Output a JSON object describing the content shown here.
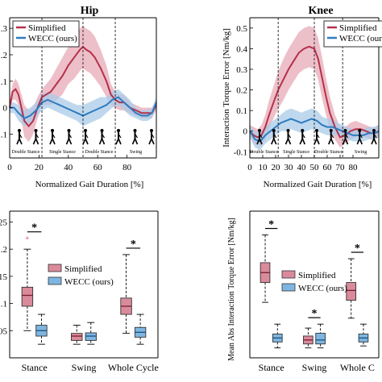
{
  "colors": {
    "simplified": "#b5304a",
    "simplified_fill": "#e5a4b2",
    "wecc": "#2e7bc0",
    "wecc_fill": "#a9cbe8",
    "box_pink": "#d98b9c",
    "box_blue": "#7fb6e1"
  },
  "chart_data": [
    {
      "id": "hip_line",
      "type": "line",
      "title": "Hip",
      "xlabel": "Normalized Gait Duration [%]",
      "ylabel": "",
      "xlim": [
        0,
        100
      ],
      "ylim": [
        -0.19,
        0.34
      ],
      "xticks": [
        0,
        20,
        40,
        60,
        80
      ],
      "yticks": [
        {
          "v": 0.3,
          "label": ".3"
        },
        {
          "v": 0.2,
          "label": ".2"
        },
        {
          "v": 0.1,
          "label": ".1"
        },
        {
          "v": 0,
          "label": "0"
        },
        {
          "v": -0.1,
          "label": ".1"
        }
      ],
      "vlines": [
        22,
        50,
        72
      ],
      "phases": [
        "Double Stance",
        "Single Stance",
        "Double Stance",
        "Swing"
      ],
      "legend": {
        "placement": "top-left",
        "entries": [
          "Simplified",
          "WECC (ours)"
        ]
      },
      "series": [
        {
          "name": "Simplified",
          "x": [
            0,
            2,
            4,
            6,
            8,
            10,
            13,
            16,
            19,
            22,
            25,
            28,
            32,
            36,
            40,
            44,
            48,
            50,
            52,
            55,
            58,
            62,
            66,
            69,
            72,
            75,
            78,
            82,
            86,
            90,
            94,
            97,
            100
          ],
          "y": [
            0.0,
            0.06,
            0.07,
            0.05,
            0.0,
            -0.05,
            -0.07,
            -0.05,
            0.0,
            0.04,
            0.05,
            0.06,
            0.09,
            0.12,
            0.16,
            0.19,
            0.22,
            0.23,
            0.22,
            0.21,
            0.19,
            0.15,
            0.1,
            0.05,
            0.03,
            0.02,
            0.02,
            0.0,
            -0.01,
            -0.02,
            -0.02,
            -0.02,
            0.01
          ],
          "spread": [
            0.02,
            0.03,
            0.04,
            0.04,
            0.05,
            0.06,
            0.06,
            0.05,
            0.04,
            0.03,
            0.04,
            0.05,
            0.06,
            0.07,
            0.07,
            0.08,
            0.08,
            0.08,
            0.08,
            0.08,
            0.08,
            0.07,
            0.06,
            0.04,
            0.03,
            0.03,
            0.03,
            0.02,
            0.02,
            0.02,
            0.02,
            0.02,
            0.02
          ]
        },
        {
          "name": "WECC (ours)",
          "x": [
            0,
            3,
            6,
            10,
            14,
            18,
            22,
            26,
            30,
            34,
            38,
            42,
            46,
            50,
            54,
            58,
            62,
            66,
            70,
            74,
            78,
            82,
            86,
            90,
            94,
            97,
            100
          ],
          "y": [
            0.0,
            0.0,
            -0.02,
            -0.04,
            -0.03,
            -0.01,
            0.02,
            0.03,
            0.02,
            0.01,
            0.0,
            -0.01,
            -0.02,
            -0.03,
            -0.02,
            -0.01,
            0.0,
            0.01,
            0.03,
            0.04,
            0.02,
            0.0,
            -0.02,
            -0.03,
            -0.03,
            -0.02,
            0.02
          ],
          "spread": [
            0.02,
            0.02,
            0.03,
            0.03,
            0.03,
            0.03,
            0.03,
            0.03,
            0.03,
            0.03,
            0.03,
            0.03,
            0.03,
            0.04,
            0.04,
            0.04,
            0.04,
            0.03,
            0.03,
            0.03,
            0.03,
            0.03,
            0.02,
            0.02,
            0.02,
            0.02,
            0.02
          ]
        }
      ]
    },
    {
      "id": "knee_line",
      "type": "line",
      "title": "Knee",
      "xlabel": "Normalized Gait Duration [%]",
      "ylabel": "Interaction Torque Error [Nm/kg]",
      "xlim": [
        0,
        100
      ],
      "ylim": [
        -0.13,
        0.55
      ],
      "xticks": [
        0,
        10,
        20,
        30,
        40,
        50,
        60,
        70,
        80
      ],
      "yticks": [
        {
          "v": 0.5,
          "label": "0.5"
        },
        {
          "v": 0.4,
          "label": "0.4"
        },
        {
          "v": 0.3,
          "label": "0.3"
        },
        {
          "v": 0.2,
          "label": "0.2"
        },
        {
          "v": 0.1,
          "label": "0.1"
        },
        {
          "v": 0,
          "label": "0"
        },
        {
          "v": -0.1,
          "label": "-0.1"
        }
      ],
      "vlines": [
        22,
        50,
        72
      ],
      "phases": [
        "Double Stance",
        "Single Stance",
        "Double Stance",
        "Swing"
      ],
      "legend": {
        "placement": "top-right",
        "entries": [
          "Simplified",
          "WECC (ours)"
        ]
      },
      "series": [
        {
          "name": "Simplified",
          "x": [
            0,
            3,
            6,
            9,
            12,
            15,
            19,
            22,
            26,
            30,
            34,
            38,
            42,
            46,
            50,
            53,
            56,
            59,
            62,
            66,
            70,
            74,
            78,
            82,
            86,
            90,
            94,
            97,
            100
          ],
          "y": [
            0.0,
            -0.02,
            -0.03,
            -0.02,
            0.02,
            0.08,
            0.15,
            0.2,
            0.25,
            0.3,
            0.34,
            0.38,
            0.4,
            0.41,
            0.4,
            0.35,
            0.26,
            0.17,
            0.09,
            0.02,
            -0.03,
            -0.02,
            0.0,
            0.01,
            0.01,
            0.0,
            -0.01,
            -0.01,
            0.0
          ],
          "spread": [
            0.03,
            0.04,
            0.04,
            0.05,
            0.06,
            0.07,
            0.08,
            0.09,
            0.1,
            0.1,
            0.1,
            0.1,
            0.1,
            0.1,
            0.1,
            0.1,
            0.1,
            0.09,
            0.08,
            0.06,
            0.05,
            0.04,
            0.04,
            0.04,
            0.03,
            0.03,
            0.03,
            0.03,
            0.03
          ]
        },
        {
          "name": "WECC (ours)",
          "x": [
            0,
            4,
            8,
            12,
            16,
            20,
            24,
            28,
            32,
            36,
            40,
            44,
            48,
            52,
            56,
            60,
            64,
            68,
            72,
            76,
            80,
            84,
            88,
            92,
            96,
            100
          ],
          "y": [
            0.0,
            -0.04,
            -0.05,
            -0.02,
            0.0,
            0.02,
            0.04,
            0.05,
            0.06,
            0.05,
            0.04,
            0.05,
            0.06,
            0.05,
            0.03,
            0.02,
            0.02,
            0.01,
            0.0,
            -0.01,
            -0.02,
            -0.02,
            -0.02,
            -0.01,
            -0.01,
            0.0
          ],
          "spread": [
            0.03,
            0.04,
            0.04,
            0.04,
            0.04,
            0.04,
            0.04,
            0.05,
            0.05,
            0.05,
            0.05,
            0.05,
            0.05,
            0.05,
            0.04,
            0.04,
            0.04,
            0.03,
            0.03,
            0.03,
            0.03,
            0.03,
            0.03,
            0.03,
            0.03,
            0.03
          ]
        }
      ]
    },
    {
      "id": "hip_box",
      "type": "box",
      "title": "",
      "xlabel": "",
      "ylabel": "",
      "ylim": [
        0,
        0.27
      ],
      "yticks": [
        {
          "v": 0.25,
          "label": ".25"
        },
        {
          "v": 0.2,
          "label": ".2"
        },
        {
          "v": 0.15,
          "label": ".15"
        },
        {
          "v": 0.1,
          "label": ".1"
        },
        {
          "v": 0.05,
          "label": ".05"
        }
      ],
      "categories": [
        "Stance",
        "Swing",
        "Whole Cycle"
      ],
      "legend": {
        "placement": "center",
        "entries": [
          "Simplified",
          "WECC (ours)"
        ]
      },
      "significance": [
        0,
        2
      ],
      "series": [
        {
          "name": "Simplified",
          "boxes": [
            {
              "min": 0.05,
              "q1": 0.095,
              "median": 0.115,
              "q3": 0.13,
              "max": 0.2,
              "outliers": [
                0.22
              ]
            },
            {
              "min": 0.025,
              "q1": 0.032,
              "median": 0.04,
              "q3": 0.045,
              "max": 0.06,
              "outliers": []
            },
            {
              "min": 0.045,
              "q1": 0.08,
              "median": 0.095,
              "q3": 0.11,
              "max": 0.19,
              "outliers": []
            }
          ]
        },
        {
          "name": "WECC (ours)",
          "boxes": [
            {
              "min": 0.025,
              "q1": 0.04,
              "median": 0.05,
              "q3": 0.06,
              "max": 0.08,
              "outliers": []
            },
            {
              "min": 0.025,
              "q1": 0.032,
              "median": 0.04,
              "q3": 0.046,
              "max": 0.065,
              "outliers": []
            },
            {
              "min": 0.025,
              "q1": 0.038,
              "median": 0.047,
              "q3": 0.056,
              "max": 0.08,
              "outliers": []
            }
          ]
        }
      ]
    },
    {
      "id": "knee_box",
      "type": "box",
      "title": "",
      "xlabel": "",
      "ylabel": "Mean Abs Interaction Torque Error [Nm/kg]",
      "ylim": [
        0,
        0.37
      ],
      "yticks": [],
      "categories": [
        "Stance",
        "Swing",
        "Whole C"
      ],
      "legend": {
        "placement": "center",
        "entries": [
          "Simplified",
          "WECC (ours)"
        ]
      },
      "significance": [
        0,
        1,
        2
      ],
      "series": [
        {
          "name": "Simplified",
          "boxes": [
            {
              "min": 0.14,
              "q1": 0.19,
              "median": 0.215,
              "q3": 0.24,
              "max": 0.31,
              "outliers": []
            },
            {
              "min": 0.025,
              "q1": 0.035,
              "median": 0.045,
              "q3": 0.055,
              "max": 0.075,
              "outliers": []
            },
            {
              "min": 0.1,
              "q1": 0.145,
              "median": 0.17,
              "q3": 0.19,
              "max": 0.25,
              "outliers": []
            }
          ]
        },
        {
          "name": "WECC (ours)",
          "boxes": [
            {
              "min": 0.025,
              "q1": 0.04,
              "median": 0.05,
              "q3": 0.06,
              "max": 0.085,
              "outliers": []
            },
            {
              "min": 0.025,
              "q1": 0.035,
              "median": 0.045,
              "q3": 0.062,
              "max": 0.085,
              "outliers": []
            },
            {
              "min": 0.03,
              "q1": 0.04,
              "median": 0.05,
              "q3": 0.06,
              "max": 0.085,
              "outliers": []
            }
          ]
        }
      ]
    }
  ]
}
